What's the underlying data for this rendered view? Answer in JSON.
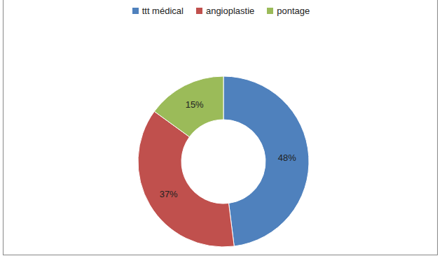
{
  "chart_data": {
    "type": "pie",
    "categories": [
      "ttt médical",
      "angioplastie",
      "pontage"
    ],
    "values": [
      48,
      37,
      15
    ],
    "value_labels": [
      "48%",
      "37%",
      "15%"
    ],
    "colors": [
      "#4f81bd",
      "#c0504d",
      "#9bbb59"
    ],
    "legend": "top",
    "data_labels": true
  }
}
